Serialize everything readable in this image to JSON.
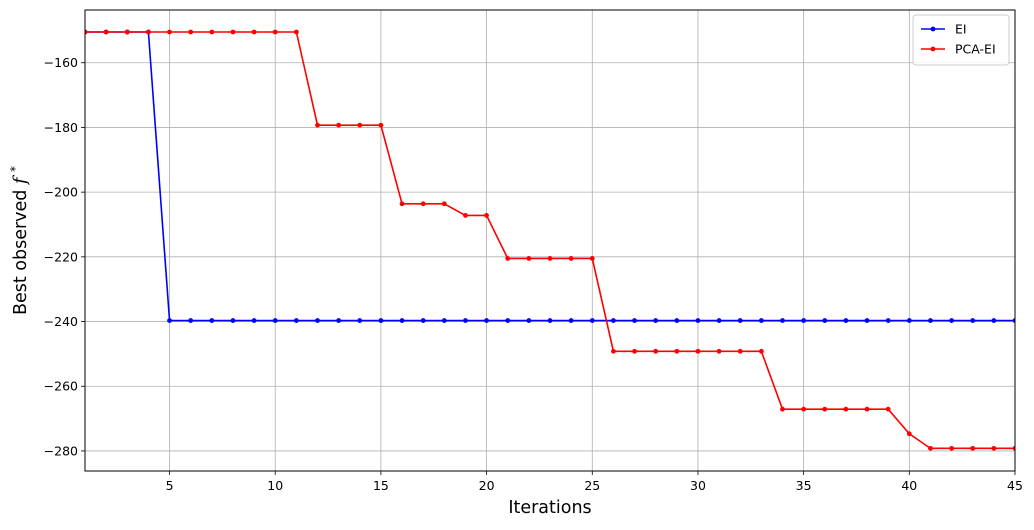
{
  "chart_data": {
    "type": "line",
    "xlabel": "Iterations",
    "ylabel": "Best observed",
    "ylabel_symbol": "f",
    "ylabel_superscript": "*",
    "xlim": [
      1,
      45
    ],
    "ylim": [
      -286.2,
      -143.7
    ],
    "xticks": [
      5,
      10,
      15,
      20,
      25,
      30,
      35,
      40,
      45
    ],
    "yticks": [
      -160,
      -180,
      -200,
      -220,
      -240,
      -260,
      -280
    ],
    "grid": true,
    "legend": "top-right",
    "series": [
      {
        "name": "EI",
        "color": "#0000ff",
        "x": [
          1,
          2,
          3,
          4,
          5,
          6,
          7,
          8,
          9,
          10,
          11,
          12,
          13,
          14,
          15,
          16,
          17,
          18,
          19,
          20,
          21,
          22,
          23,
          24,
          25,
          26,
          27,
          28,
          29,
          30,
          31,
          32,
          33,
          34,
          35,
          36,
          37,
          38,
          39,
          40,
          41,
          42,
          43,
          44,
          45
        ],
        "values": [
          -150.5,
          -150.5,
          -150.5,
          -150.5,
          -239.7,
          -239.7,
          -239.7,
          -239.7,
          -239.7,
          -239.7,
          -239.7,
          -239.7,
          -239.7,
          -239.7,
          -239.7,
          -239.7,
          -239.7,
          -239.7,
          -239.7,
          -239.7,
          -239.7,
          -239.7,
          -239.7,
          -239.7,
          -239.7,
          -239.7,
          -239.7,
          -239.7,
          -239.7,
          -239.7,
          -239.7,
          -239.7,
          -239.7,
          -239.7,
          -239.7,
          -239.7,
          -239.7,
          -239.7,
          -239.7,
          -239.7,
          -239.7,
          -239.7,
          -239.7,
          -239.7,
          -239.7
        ]
      },
      {
        "name": "PCA-EI",
        "color": "#ff0000",
        "x": [
          1,
          2,
          3,
          4,
          5,
          6,
          7,
          8,
          9,
          10,
          11,
          12,
          13,
          14,
          15,
          16,
          17,
          18,
          19,
          20,
          21,
          22,
          23,
          24,
          25,
          26,
          27,
          28,
          29,
          30,
          31,
          32,
          33,
          34,
          35,
          36,
          37,
          38,
          39,
          40,
          41,
          42,
          43,
          44,
          45
        ],
        "values": [
          -150.5,
          -150.5,
          -150.5,
          -150.5,
          -150.5,
          -150.5,
          -150.5,
          -150.5,
          -150.5,
          -150.5,
          -150.5,
          -179.3,
          -179.3,
          -179.3,
          -179.3,
          -203.6,
          -203.6,
          -203.6,
          -207.2,
          -207.2,
          -220.5,
          -220.5,
          -220.5,
          -220.5,
          -220.5,
          -249.2,
          -249.2,
          -249.2,
          -249.2,
          -249.2,
          -249.2,
          -249.2,
          -249.2,
          -267.1,
          -267.1,
          -267.1,
          -267.1,
          -267.1,
          -267.1,
          -274.7,
          -279.2,
          -279.2,
          -279.2,
          -279.2,
          -279.2
        ]
      }
    ]
  }
}
